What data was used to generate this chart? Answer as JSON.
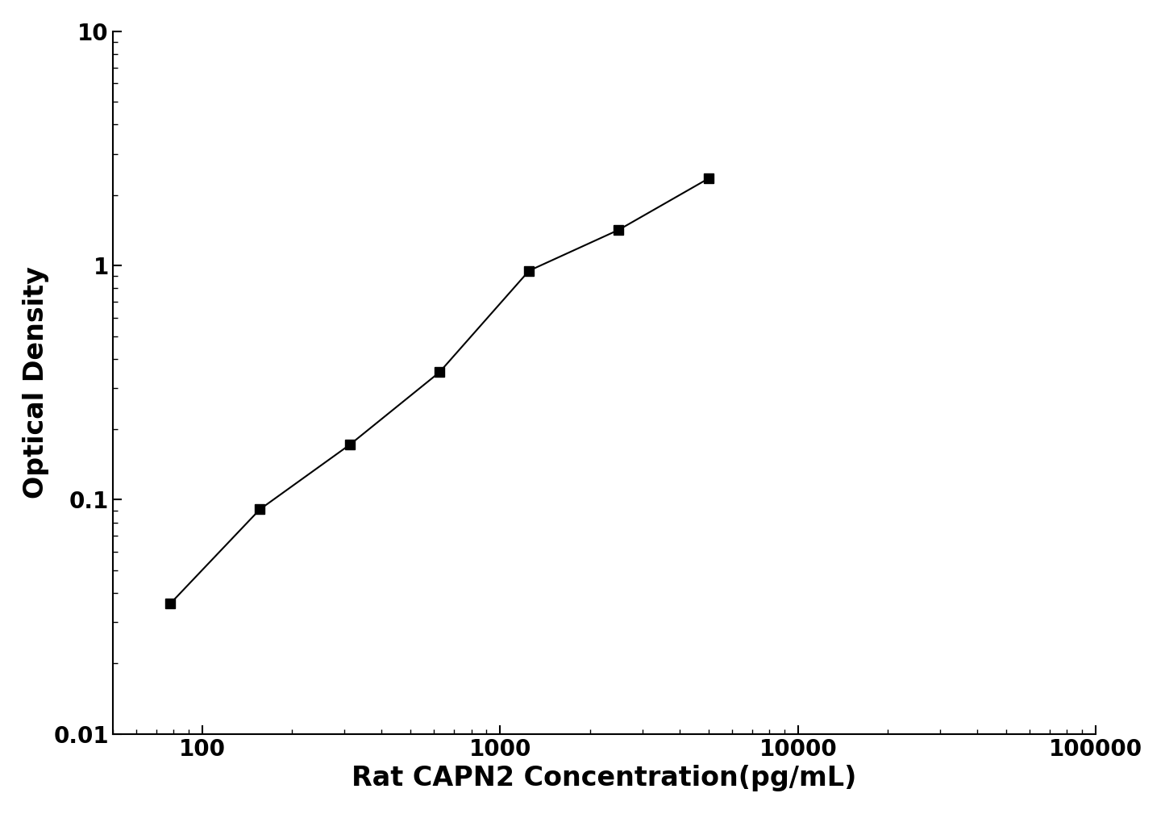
{
  "x": [
    78,
    156,
    313,
    625,
    1250,
    2500,
    5000
  ],
  "y": [
    0.036,
    0.091,
    0.172,
    0.35,
    0.95,
    1.42,
    2.35
  ],
  "xlabel": "Rat CAPN2 Concentration(pg/mL)",
  "ylabel": "Optical Density",
  "xlim": [
    50,
    100000
  ],
  "ylim": [
    0.01,
    10
  ],
  "line_color": "#000000",
  "marker": "s",
  "marker_color": "#000000",
  "marker_size": 9,
  "line_width": 1.5,
  "xlabel_fontsize": 24,
  "ylabel_fontsize": 24,
  "tick_fontsize": 20,
  "background_color": "#ffffff",
  "axis_color": "#000000",
  "ytick_labels": [
    "0.01",
    "0.1",
    "1",
    "10"
  ],
  "ytick_values": [
    0.01,
    0.1,
    1,
    10
  ],
  "xtick_labels": [
    "100",
    "1000",
    "10000",
    "100000"
  ],
  "xtick_values": [
    100,
    1000,
    10000,
    100000
  ]
}
